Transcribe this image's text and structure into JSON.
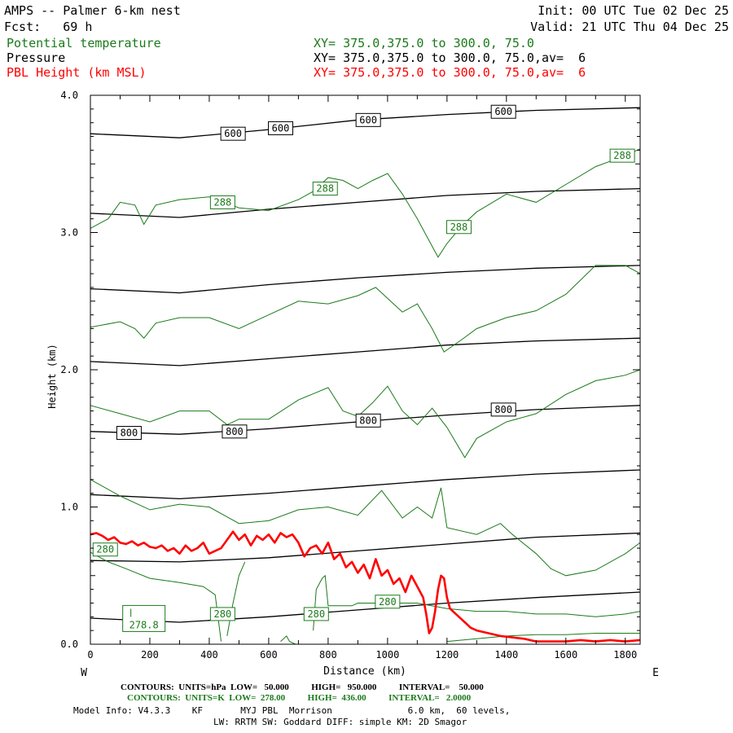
{
  "header": {
    "title": "AMPS -- Palmer 6-km nest",
    "fcst": "Fcst:   69 h",
    "init": "Init: 00 UTC Tue 02 Dec 25",
    "valid": "Valid: 21 UTC Thu 04 Dec 25",
    "fields": [
      {
        "name": "Potential temperature",
        "xy": "XY= 375.0,375.0 to 300.0, 75.0",
        "color": "#1a7a1a"
      },
      {
        "name": "Pressure",
        "xy": "XY= 375.0,375.0 to 300.0, 75.0,av=  6",
        "color": "#000000"
      },
      {
        "name": "PBL Height (km MSL)",
        "xy": "XY= 375.0,375.0 to 300.0, 75.0,av=  6",
        "color": "#ff0000"
      }
    ]
  },
  "footer": {
    "pressure_contours": "CONTOURS:  UNITS=hPa  LOW=   50.000          HIGH=   950.000          INTERVAL=    50.000",
    "theta_contours": "CONTOURS:  UNITS=K  LOW=  278.00          HIGH=  436.00          INTERVAL=   2.0000",
    "model_info": "Model Info: V4.3.3    KF       MYJ PBL  Morrison              6.0 km,  60 levels,",
    "model_info2": "LW: RRTM SW: Goddard DIFF: simple KM: 2D Smagor"
  },
  "chart_data": {
    "type": "line",
    "xlabel": "Distance (km)",
    "ylabel": "Height (km)",
    "xlim": [
      0,
      1850
    ],
    "ylim": [
      0,
      4.0
    ],
    "x_ticks": [
      0,
      200,
      400,
      600,
      800,
      1000,
      1200,
      1400,
      1600,
      1800
    ],
    "y_ticks": [
      0.0,
      1.0,
      2.0,
      3.0,
      4.0
    ],
    "x_tick_labels": [
      "0",
      "200",
      "400",
      "600",
      "800",
      "1000",
      "1200",
      "1400",
      "1600",
      "1800"
    ],
    "y_tick_labels": [
      "0.0",
      "1.0",
      "2.0",
      "3.0",
      "4.0"
    ],
    "left_end_label": "W",
    "right_end_label": "E",
    "pressure_series": [
      {
        "x": [
          0,
          300,
          600,
          900,
          1200,
          1500,
          1850
        ],
        "y": [
          3.72,
          3.69,
          3.75,
          3.82,
          3.86,
          3.89,
          3.91
        ]
      },
      {
        "x": [
          0,
          300,
          600,
          900,
          1200,
          1500,
          1850
        ],
        "y": [
          3.14,
          3.11,
          3.17,
          3.22,
          3.27,
          3.3,
          3.32
        ]
      },
      {
        "x": [
          0,
          300,
          600,
          900,
          1200,
          1500,
          1850
        ],
        "y": [
          2.59,
          2.56,
          2.62,
          2.67,
          2.71,
          2.74,
          2.76
        ]
      },
      {
        "x": [
          0,
          300,
          600,
          900,
          1200,
          1500,
          1850
        ],
        "y": [
          2.06,
          2.03,
          2.08,
          2.13,
          2.18,
          2.21,
          2.23
        ]
      },
      {
        "x": [
          0,
          300,
          600,
          900,
          1200,
          1500,
          1850
        ],
        "y": [
          1.55,
          1.53,
          1.57,
          1.62,
          1.67,
          1.71,
          1.74
        ]
      },
      {
        "x": [
          0,
          300,
          600,
          900,
          1200,
          1500,
          1850
        ],
        "y": [
          1.09,
          1.06,
          1.1,
          1.15,
          1.2,
          1.24,
          1.27
        ]
      },
      {
        "x": [
          0,
          300,
          600,
          900,
          1200,
          1500,
          1850
        ],
        "y": [
          0.61,
          0.6,
          0.63,
          0.68,
          0.73,
          0.78,
          0.81
        ]
      },
      {
        "x": [
          0,
          300,
          600,
          900,
          1200,
          1500,
          1850
        ],
        "y": [
          0.19,
          0.16,
          0.2,
          0.25,
          0.3,
          0.34,
          0.38
        ]
      }
    ],
    "pressure_labels": [
      {
        "text": "600",
        "x": 480,
        "y": 3.72
      },
      {
        "text": "600",
        "x": 640,
        "y": 3.76
      },
      {
        "text": "600",
        "x": 935,
        "y": 3.82
      },
      {
        "text": "600",
        "x": 1390,
        "y": 3.88
      },
      {
        "text": "800",
        "x": 130,
        "y": 1.54
      },
      {
        "text": "800",
        "x": 485,
        "y": 1.55
      },
      {
        "text": "800",
        "x": 935,
        "y": 1.63
      },
      {
        "text": "800",
        "x": 1390,
        "y": 1.71
      }
    ],
    "theta_series": [
      {
        "x": [
          0,
          60,
          100,
          150,
          180,
          220,
          300,
          400,
          500,
          600,
          700,
          750,
          800,
          850,
          900,
          950,
          1000,
          1050,
          1100,
          1150,
          1170,
          1200,
          1250,
          1300,
          1400,
          1500,
          1600,
          1700,
          1800,
          1850
        ],
        "y": [
          3.03,
          3.1,
          3.22,
          3.2,
          3.06,
          3.2,
          3.24,
          3.26,
          3.18,
          3.16,
          3.24,
          3.3,
          3.4,
          3.38,
          3.32,
          3.38,
          3.43,
          3.28,
          3.1,
          2.9,
          2.82,
          2.92,
          3.05,
          3.15,
          3.28,
          3.22,
          3.35,
          3.48,
          3.56,
          3.61
        ]
      },
      {
        "x": [
          0,
          100,
          150,
          180,
          220,
          300,
          400,
          500,
          600,
          700,
          800,
          900,
          960,
          1000,
          1050,
          1100,
          1150,
          1190,
          1250,
          1300,
          1400,
          1500,
          1600,
          1700,
          1800,
          1850
        ],
        "y": [
          2.31,
          2.35,
          2.3,
          2.23,
          2.34,
          2.38,
          2.38,
          2.3,
          2.4,
          2.5,
          2.48,
          2.54,
          2.6,
          2.52,
          2.42,
          2.48,
          2.3,
          2.13,
          2.22,
          2.3,
          2.38,
          2.43,
          2.55,
          2.76,
          2.76,
          2.7
        ]
      },
      {
        "x": [
          0,
          100,
          200,
          300,
          400,
          460,
          500,
          600,
          700,
          800,
          850,
          900,
          950,
          1000,
          1050,
          1100,
          1150,
          1200,
          1260,
          1300,
          1400,
          1500,
          1600,
          1700,
          1800,
          1850
        ],
        "y": [
          1.74,
          1.68,
          1.62,
          1.7,
          1.7,
          1.6,
          1.64,
          1.64,
          1.78,
          1.87,
          1.7,
          1.66,
          1.76,
          1.88,
          1.7,
          1.6,
          1.72,
          1.58,
          1.36,
          1.5,
          1.62,
          1.68,
          1.82,
          1.92,
          1.96,
          2.0
        ]
      },
      {
        "x": [
          0,
          100,
          200,
          300,
          400,
          500,
          600,
          700,
          800,
          900,
          980,
          1050,
          1100,
          1150,
          1180,
          1200,
          1300,
          1380,
          1420,
          1500,
          1550,
          1600,
          1700,
          1800,
          1850
        ],
        "y": [
          1.2,
          1.08,
          0.98,
          1.02,
          1.0,
          0.88,
          0.9,
          0.98,
          1.0,
          0.94,
          1.12,
          0.92,
          1.0,
          0.92,
          1.14,
          0.85,
          0.8,
          0.88,
          0.8,
          0.66,
          0.55,
          0.5,
          0.54,
          0.66,
          0.74
        ]
      }
    ],
    "theta_low_series": [
      {
        "x": [
          0,
          60,
          120,
          200,
          300,
          380,
          420,
          440
        ],
        "y": [
          0.67,
          0.6,
          0.55,
          0.48,
          0.45,
          0.42,
          0.36,
          0.02
        ]
      },
      {
        "x": [
          460,
          480,
          500,
          520
        ],
        "y": [
          0.06,
          0.3,
          0.5,
          0.6
        ]
      },
      {
        "x": [
          640,
          660,
          670,
          690
        ],
        "y": [
          0.02,
          0.06,
          0.02,
          0.0
        ]
      },
      {
        "x": [
          750,
          760,
          780,
          790,
          800,
          830,
          880,
          900,
          1000,
          1100,
          1200,
          1300,
          1400,
          1500,
          1600,
          1700,
          1800,
          1850
        ],
        "y": [
          0.1,
          0.4,
          0.48,
          0.5,
          0.28,
          0.28,
          0.28,
          0.3,
          0.3,
          0.3,
          0.26,
          0.24,
          0.24,
          0.22,
          0.22,
          0.2,
          0.22,
          0.24
        ]
      },
      {
        "x": [
          1200,
          1300,
          1400,
          1500,
          1600,
          1700,
          1800,
          1850
        ],
        "y": [
          0.02,
          0.04,
          0.06,
          0.07,
          0.07,
          0.08,
          0.08,
          0.08
        ]
      }
    ],
    "theta_labels": [
      {
        "text": "288",
        "x": 445,
        "y": 3.22
      },
      {
        "text": "288",
        "x": 790,
        "y": 3.32
      },
      {
        "text": "288",
        "x": 1240,
        "y": 3.04
      },
      {
        "text": "288",
        "x": 1790,
        "y": 3.56
      },
      {
        "text": "280",
        "x": 50,
        "y": 0.69
      },
      {
        "text": "280",
        "x": 445,
        "y": 0.22
      },
      {
        "text": "280",
        "x": 760,
        "y": 0.22
      },
      {
        "text": "280",
        "x": 1000,
        "y": 0.31
      }
    ],
    "theta_min_label": {
      "text": "278.8",
      "x": 180,
      "y": 0.14
    },
    "pbl_series": {
      "x": [
        0,
        20,
        40,
        60,
        80,
        100,
        120,
        140,
        160,
        180,
        200,
        220,
        240,
        260,
        280,
        300,
        320,
        340,
        360,
        380,
        400,
        420,
        440,
        460,
        480,
        500,
        520,
        540,
        560,
        580,
        600,
        620,
        640,
        660,
        680,
        700,
        720,
        740,
        760,
        780,
        800,
        820,
        840,
        860,
        880,
        900,
        920,
        940,
        960,
        980,
        1000,
        1020,
        1040,
        1060,
        1080,
        1100,
        1120,
        1130,
        1140,
        1150,
        1160,
        1170,
        1180,
        1190,
        1200,
        1210,
        1220,
        1240,
        1260,
        1280,
        1300,
        1340,
        1380,
        1420,
        1460,
        1500,
        1550,
        1600,
        1650,
        1700,
        1750,
        1800,
        1850
      ],
      "y": [
        0.8,
        0.81,
        0.79,
        0.76,
        0.78,
        0.74,
        0.73,
        0.75,
        0.72,
        0.74,
        0.71,
        0.7,
        0.72,
        0.68,
        0.7,
        0.66,
        0.72,
        0.68,
        0.7,
        0.74,
        0.66,
        0.68,
        0.7,
        0.76,
        0.82,
        0.76,
        0.8,
        0.72,
        0.79,
        0.76,
        0.8,
        0.74,
        0.81,
        0.78,
        0.8,
        0.74,
        0.64,
        0.7,
        0.72,
        0.66,
        0.74,
        0.62,
        0.66,
        0.56,
        0.6,
        0.52,
        0.58,
        0.48,
        0.62,
        0.5,
        0.54,
        0.44,
        0.48,
        0.38,
        0.5,
        0.42,
        0.34,
        0.22,
        0.08,
        0.12,
        0.24,
        0.4,
        0.5,
        0.48,
        0.34,
        0.26,
        0.24,
        0.2,
        0.16,
        0.12,
        0.1,
        0.08,
        0.06,
        0.05,
        0.04,
        0.02,
        0.02,
        0.02,
        0.03,
        0.02,
        0.03,
        0.02,
        0.03
      ]
    }
  }
}
